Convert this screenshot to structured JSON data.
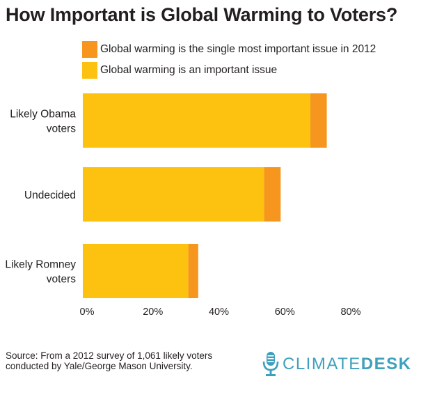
{
  "colors": {
    "important": "#fdc20f",
    "most_important": "#f7961e",
    "text": "#231f20",
    "logo_blue": "#3ea0bd"
  },
  "chart_data": {
    "type": "bar",
    "orientation": "horizontal",
    "stacked": true,
    "title": "How Important is Global Warming to Voters?",
    "categories": [
      "Likely Obama voters",
      "Undecided",
      "Likely Romney voters"
    ],
    "category_lines": [
      [
        "Likely Obama",
        "voters"
      ],
      [
        "Undecided"
      ],
      [
        "Likely Romney",
        "voters"
      ]
    ],
    "series": [
      {
        "name": "Global warming is an important issue",
        "values": [
          69,
          55,
          32
        ]
      },
      {
        "name": "Global warming is the single most important issue in 2012",
        "values": [
          5,
          5,
          3
        ]
      }
    ],
    "xlim": [
      0,
      80
    ],
    "xticks": [
      0,
      20,
      40,
      60,
      80
    ],
    "xtick_labels": [
      "0%",
      "20%",
      "40%",
      "60%",
      "80%"
    ],
    "xlabel": "",
    "ylabel": "",
    "grid": false,
    "legend_position": "top"
  },
  "legend": {
    "items": [
      {
        "label": "Global warming is the single most important issue in 2012"
      },
      {
        "label": "Global warming is an important issue"
      }
    ]
  },
  "footer": {
    "source_line1": "Source: From a 2012 survey of 1,061 likely voters",
    "source_line2": "conducted by Yale/George Mason University.",
    "logo_part1": "CLIMATE",
    "logo_part2": "DESK"
  }
}
